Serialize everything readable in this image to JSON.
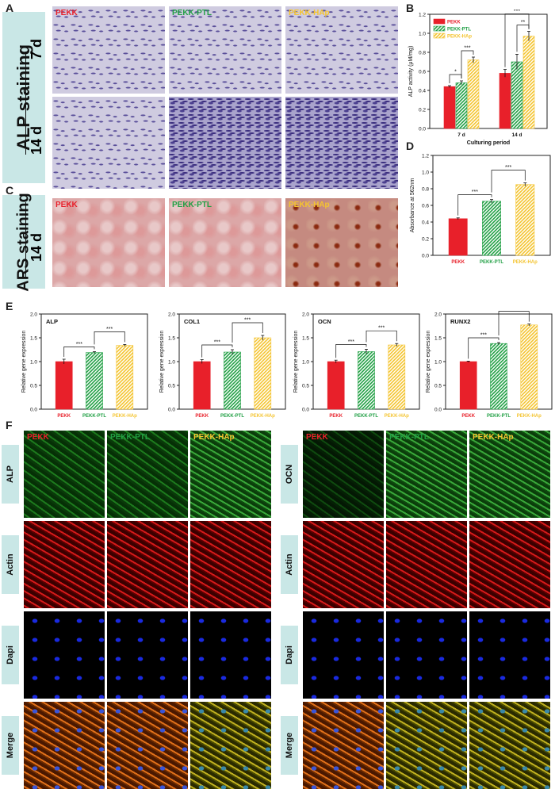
{
  "panels": {
    "A": "A",
    "B": "B",
    "C": "C",
    "D": "D",
    "E": "E",
    "F": "F"
  },
  "groups": [
    "PEKK",
    "PEKK-PTL",
    "PEKK-HAp"
  ],
  "group_colors": {
    "PEKK": "#e8202a",
    "PEKK-PTL": "#22a045",
    "PEKK-HAp": "#f4c430"
  },
  "alp_staining": {
    "title": "ALP staining",
    "rows": [
      "7 d",
      "14 d"
    ]
  },
  "ars_staining": {
    "title": "ARS staining",
    "row": "14 d"
  },
  "confocal_left": {
    "columns": [
      "PEKK",
      "PEKK-PTL",
      "PEKK-HAp"
    ],
    "rows": [
      "ALP",
      "Actin",
      "Dapi",
      "Merge"
    ]
  },
  "confocal_right": {
    "columns": [
      "PEKK",
      "PEKK-PTL",
      "PEKK-HAp"
    ],
    "rows": [
      "OCN",
      "Actin",
      "Dapi",
      "Merge"
    ]
  },
  "chart_data": [
    {
      "id": "B",
      "type": "bar",
      "categories": [
        "7 d",
        "14 d"
      ],
      "series": [
        {
          "name": "PEKK",
          "values": [
            0.44,
            0.58
          ]
        },
        {
          "name": "PEKK-PTL",
          "values": [
            0.48,
            0.7
          ]
        },
        {
          "name": "PEKK-HAp",
          "values": [
            0.72,
            0.97
          ]
        }
      ],
      "errors": [
        [
          0.01,
          0.04
        ],
        [
          0.02,
          0.08
        ],
        [
          0.03,
          0.05
        ]
      ],
      "ylabel": "ALP activity (μM/mg)",
      "xlabel": "Culturing period",
      "ylim": [
        0.0,
        1.2
      ],
      "yticks": [
        "0.0",
        "0.2",
        "0.4",
        "0.6",
        "0.8",
        "1.0",
        "1.2"
      ],
      "sig": [
        "*",
        "***",
        "***",
        "**"
      ],
      "legend": "top-left"
    },
    {
      "id": "D",
      "type": "bar",
      "categories": [
        "PEKK",
        "PEKK-PTL",
        "PEKK-HAp"
      ],
      "values": [
        0.44,
        0.65,
        0.85
      ],
      "errors": [
        0.01,
        0.02,
        0.02
      ],
      "ylabel": "Absorbance at 562nm",
      "ylim": [
        0.0,
        1.2
      ],
      "yticks": [
        "0.0",
        "0.2",
        "0.4",
        "0.6",
        "0.8",
        "1.0",
        "1.2"
      ],
      "sig": [
        "***",
        "***"
      ]
    },
    {
      "id": "E1",
      "type": "bar",
      "title": "ALP",
      "categories": [
        "PEKK",
        "PEKK-PTL",
        "PEKK-HAp"
      ],
      "values": [
        1.0,
        1.19,
        1.34
      ],
      "errors": [
        0.05,
        0.02,
        0.02
      ],
      "ylabel": "Relative gene expression",
      "ylim": [
        0.0,
        2.0
      ],
      "yticks": [
        "0.0",
        "0.5",
        "1.0",
        "1.5",
        "2.0"
      ],
      "sig": [
        "***",
        "***"
      ]
    },
    {
      "id": "E2",
      "type": "bar",
      "title": "COL1",
      "categories": [
        "PEKK",
        "PEKK-PTL",
        "PEKK-HAp"
      ],
      "values": [
        1.0,
        1.2,
        1.5
      ],
      "errors": [
        0.04,
        0.05,
        0.05
      ],
      "ylabel": "Relative gene expression",
      "ylim": [
        0.0,
        2.0
      ],
      "yticks": [
        "0.0",
        "0.5",
        "1.0",
        "1.5",
        "2.0"
      ],
      "sig": [
        "***",
        "***"
      ]
    },
    {
      "id": "E3",
      "type": "bar",
      "title": "OCN",
      "categories": [
        "PEKK",
        "PEKK-PTL",
        "PEKK-HAp"
      ],
      "values": [
        1.0,
        1.21,
        1.35
      ],
      "errors": [
        0.03,
        0.05,
        0.03
      ],
      "ylabel": "Relative gene expression",
      "ylim": [
        0.0,
        2.0
      ],
      "yticks": [
        "0.0",
        "0.5",
        "1.0",
        "1.5",
        "2.0"
      ],
      "sig": [
        "***",
        "***"
      ]
    },
    {
      "id": "E4",
      "type": "bar",
      "title": "RUNX2",
      "categories": [
        "PEKK",
        "PEKK-PTL",
        "PEKK-HAp"
      ],
      "values": [
        1.0,
        1.38,
        1.77
      ],
      "errors": [
        0.01,
        0.02,
        0.02
      ],
      "ylabel": "Relative gene expression",
      "ylim": [
        0.0,
        2.0
      ],
      "yticks": [
        "0.0",
        "0.5",
        "1.0",
        "1.5",
        "2.0"
      ],
      "sig": [
        "***",
        "***"
      ]
    }
  ]
}
